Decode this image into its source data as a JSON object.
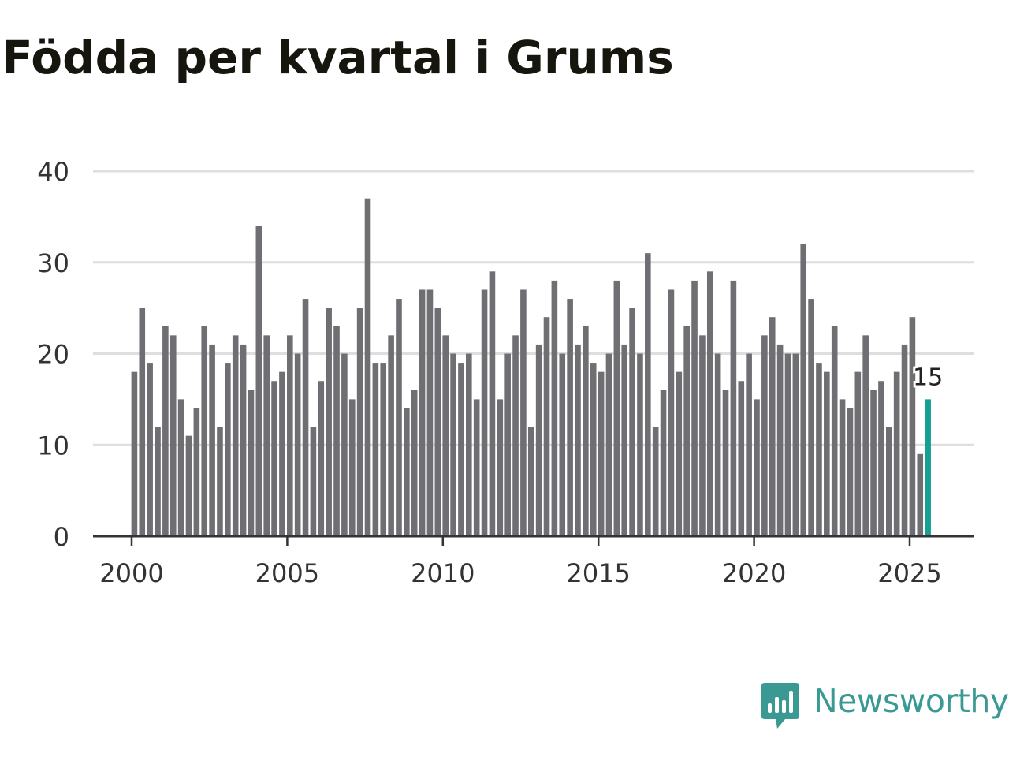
{
  "chart_data": {
    "type": "bar",
    "title": "Födda per kvartal i Grums",
    "xlabel": "",
    "ylabel": "",
    "x_tick_labels": [
      "2000",
      "2005",
      "2010",
      "2015",
      "2020",
      "2025"
    ],
    "y_tick_labels": [
      "0",
      "10",
      "20",
      "30",
      "40"
    ],
    "ylim": [
      0,
      40
    ],
    "xlim": [
      1999.5,
      2026.8
    ],
    "grid": true,
    "start_year": 2000,
    "values": [
      18,
      25,
      19,
      12,
      23,
      22,
      15,
      11,
      14,
      23,
      21,
      12,
      19,
      22,
      21,
      16,
      34,
      22,
      17,
      18,
      22,
      20,
      26,
      12,
      17,
      25,
      23,
      20,
      15,
      25,
      37,
      19,
      19,
      22,
      26,
      14,
      16,
      27,
      27,
      25,
      22,
      20,
      19,
      20,
      15,
      27,
      29,
      15,
      20,
      22,
      27,
      12,
      21,
      24,
      28,
      20,
      26,
      21,
      23,
      19,
      18,
      20,
      28,
      21,
      25,
      20,
      31,
      12,
      16,
      27,
      18,
      23,
      28,
      22,
      29,
      20,
      16,
      28,
      17,
      20,
      15,
      22,
      24,
      21,
      20,
      20,
      32,
      26,
      19,
      18,
      23,
      15,
      14,
      18,
      22,
      16,
      17,
      12,
      18,
      21,
      24,
      9,
      15
    ],
    "highlight_index": 102,
    "highlight_label": "15",
    "bar_color": "#6f6e73",
    "highlight_color": "#17a091"
  },
  "branding": {
    "name": "Newsworthy",
    "color": "#3a9a93"
  }
}
